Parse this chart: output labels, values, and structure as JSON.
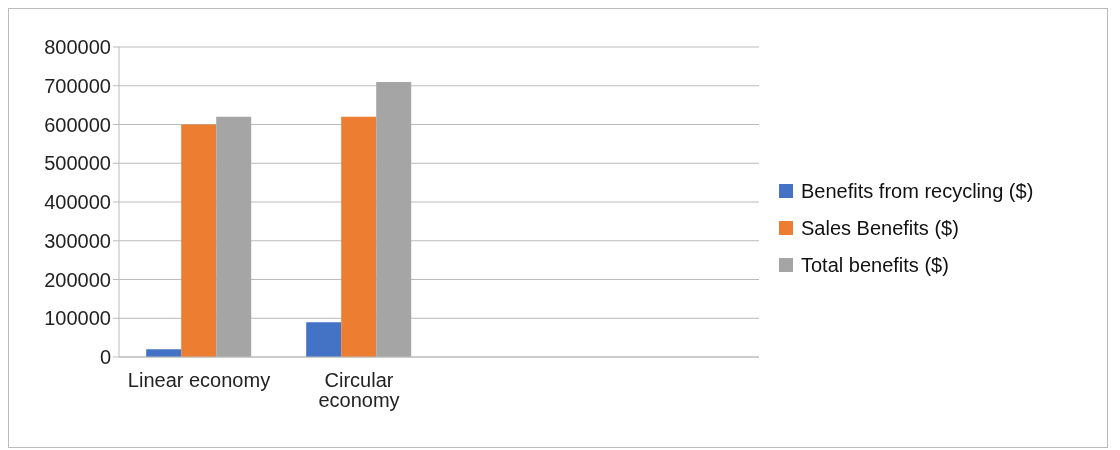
{
  "chart_data": {
    "type": "bar",
    "categories": [
      "Linear economy",
      "Circular economy",
      null,
      null
    ],
    "series": [
      {
        "name": "Benefits from recycling ($)",
        "color": "#4472c4",
        "values": [
          20000,
          90000,
          null,
          null
        ]
      },
      {
        "name": "Sales Benefits ($)",
        "color": "#ed7d31",
        "values": [
          600000,
          620000,
          null,
          null
        ]
      },
      {
        "name": "Total benefits ($)",
        "color": "#a5a5a5",
        "values": [
          620000,
          710000,
          null,
          null
        ]
      }
    ],
    "ylim": [
      0,
      800000
    ],
    "yticks": [
      0,
      100000,
      200000,
      300000,
      400000,
      500000,
      600000,
      700000,
      800000
    ],
    "grid": "y",
    "legend": "right"
  }
}
